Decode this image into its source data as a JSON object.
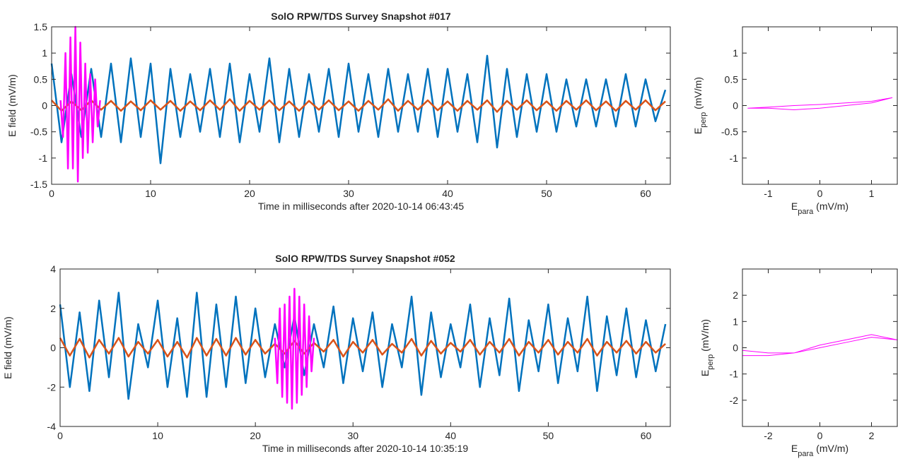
{
  "chart_data": [
    {
      "type": "line",
      "title": "SolO RPW/TDS Survey Snapshot #017",
      "xlabel": "Time in milliseconds after 2020-10-14 06:43:45",
      "ylabel": "E field (mV/m)",
      "xlim": [
        0,
        62.5
      ],
      "ylim": [
        -1.5,
        1.5
      ],
      "xticks": [
        0,
        10,
        20,
        30,
        40,
        50,
        60
      ],
      "yticks": [
        -1.5,
        -1,
        -0.5,
        0,
        0.5,
        1,
        1.5
      ],
      "x": [
        0,
        1,
        2,
        3,
        4,
        5,
        6,
        7,
        8,
        9,
        10,
        11,
        12,
        13,
        14,
        15,
        16,
        17,
        18,
        19,
        20,
        21,
        22,
        23,
        24,
        25,
        26,
        27,
        28,
        29,
        30,
        31,
        32,
        33,
        34,
        35,
        36,
        37,
        38,
        39,
        40,
        41,
        42,
        43,
        44,
        45,
        46,
        47,
        48,
        49,
        50,
        51,
        52,
        53,
        54,
        55,
        56,
        57,
        58,
        59,
        60,
        61,
        62
      ],
      "series": [
        {
          "color": "#0072bd",
          "values": [
            0.8,
            -0.7,
            0.6,
            -0.6,
            0.7,
            -0.6,
            0.8,
            -0.7,
            0.9,
            -0.6,
            0.8,
            -1.1,
            0.7,
            -0.6,
            0.6,
            -0.5,
            0.7,
            -0.6,
            0.8,
            -0.7,
            0.6,
            -0.5,
            0.9,
            -0.7,
            0.7,
            -0.6,
            0.6,
            -0.5,
            0.7,
            -0.6,
            0.8,
            -0.5,
            0.6,
            -0.6,
            0.7,
            -0.5,
            0.6,
            -0.5,
            0.7,
            -0.6,
            0.7,
            -0.5,
            0.6,
            -0.7,
            0.95,
            -0.8,
            0.7,
            -0.6,
            0.6,
            -0.5,
            0.6,
            -0.5,
            0.5,
            -0.4,
            0.5,
            -0.4,
            0.5,
            -0.4,
            0.6,
            -0.4,
            0.5,
            -0.3,
            0.3
          ]
        },
        {
          "color": "#d95319",
          "values": [
            0.1,
            -0.1,
            0.08,
            -0.09,
            0.1,
            -0.08,
            0.09,
            -0.1,
            0.08,
            -0.09,
            0.1,
            -0.08,
            0.09,
            -0.1,
            0.08,
            -0.09,
            0.1,
            -0.08,
            0.12,
            -0.1,
            0.09,
            -0.08,
            0.1,
            -0.09,
            0.08,
            -0.1,
            0.09,
            -0.08,
            0.1,
            -0.09,
            0.08,
            -0.1,
            0.09,
            -0.08,
            0.12,
            -0.1,
            0.09,
            -0.08,
            0.1,
            -0.09,
            0.08,
            -0.1,
            0.09,
            -0.08,
            0.1,
            -0.12,
            0.09,
            -0.08,
            0.1,
            -0.09,
            0.08,
            -0.1,
            0.09,
            -0.08,
            0.1,
            -0.09,
            0.08,
            -0.1,
            0.09,
            -0.08,
            0.1,
            -0.09,
            0.08
          ]
        },
        {
          "color": "#ff00ff",
          "x": [
            0.9,
            1.15,
            1.4,
            1.65,
            1.9,
            2.15,
            2.4,
            2.65,
            2.9,
            3.15,
            3.4,
            3.65,
            3.9,
            4.15,
            4.4,
            4.65,
            4.9
          ],
          "values": [
            0.1,
            -0.6,
            1.0,
            -1.2,
            1.3,
            -1.2,
            1.5,
            -1.45,
            1.2,
            -1.0,
            0.8,
            -0.9,
            0.6,
            -0.7,
            0.5,
            -0.4,
            0.1
          ]
        }
      ]
    },
    {
      "type": "line",
      "xlabel": {
        "base": "E",
        "sub": "para",
        "suffix": " (mV/m)"
      },
      "ylabel": {
        "base": "E",
        "sub": "perp",
        "suffix": " (mV/m)"
      },
      "xlim": [
        -1.5,
        1.5
      ],
      "ylim": [
        -1.5,
        1.5
      ],
      "xticks": [
        -1,
        0,
        1
      ],
      "yticks": [
        -1,
        -0.5,
        0,
        0.5,
        1
      ],
      "series": [
        {
          "color": "#ff00ff",
          "x": [
            -1.4,
            -1,
            -0.5,
            0,
            0.5,
            1,
            1.4,
            1,
            0.5,
            0,
            -0.5,
            -1,
            -1.4
          ],
          "values": [
            -0.05,
            -0.03,
            0,
            0.02,
            0.05,
            0.08,
            0.15,
            0.05,
            0,
            -0.05,
            -0.08,
            -0.05,
            -0.05
          ]
        }
      ]
    },
    {
      "type": "line",
      "title": "SolO RPW/TDS Survey Snapshot #052",
      "xlabel": "Time in milliseconds after 2020-10-14 10:35:19",
      "ylabel": "E field (mV/m)",
      "xlim": [
        0,
        62.5
      ],
      "ylim": [
        -4,
        4
      ],
      "xticks": [
        0,
        10,
        20,
        30,
        40,
        50,
        60
      ],
      "yticks": [
        -4,
        -2,
        0,
        2,
        4
      ],
      "x": [
        0,
        1,
        2,
        3,
        4,
        5,
        6,
        7,
        8,
        9,
        10,
        11,
        12,
        13,
        14,
        15,
        16,
        17,
        18,
        19,
        20,
        21,
        22,
        23,
        24,
        25,
        26,
        27,
        28,
        29,
        30,
        31,
        32,
        33,
        34,
        35,
        36,
        37,
        38,
        39,
        40,
        41,
        42,
        43,
        44,
        45,
        46,
        47,
        48,
        49,
        50,
        51,
        52,
        53,
        54,
        55,
        56,
        57,
        58,
        59,
        60,
        61,
        62
      ],
      "series": [
        {
          "color": "#0072bd",
          "values": [
            2.2,
            -2.0,
            1.8,
            -2.2,
            2.4,
            -1.5,
            2.8,
            -2.6,
            1.2,
            -1.0,
            2.4,
            -2.0,
            1.5,
            -2.5,
            2.8,
            -2.5,
            2.2,
            -2.0,
            2.6,
            -1.8,
            2.0,
            -1.5,
            1.2,
            -1.0,
            1.6,
            -1.4,
            1.2,
            -1.0,
            2.1,
            -1.8,
            1.5,
            -1.2,
            1.8,
            -2.0,
            1.2,
            -1.0,
            2.6,
            -2.4,
            1.8,
            -1.5,
            1.2,
            -1.0,
            2.2,
            -2.0,
            1.5,
            -1.4,
            2.5,
            -2.2,
            1.4,
            -1.2,
            2.2,
            -1.8,
            1.5,
            -1.2,
            2.6,
            -2.2,
            1.6,
            -1.4,
            2.0,
            -1.5,
            1.4,
            -1.2,
            1.2
          ]
        },
        {
          "color": "#d95319",
          "values": [
            0.5,
            -0.4,
            0.45,
            -0.5,
            0.4,
            -0.3,
            0.5,
            -0.45,
            0.3,
            -0.3,
            0.4,
            -0.45,
            0.3,
            -0.5,
            0.5,
            -0.4,
            0.45,
            -0.4,
            0.5,
            -0.35,
            0.4,
            -0.3,
            0.2,
            -0.3,
            0.35,
            -0.3,
            0.25,
            -0.2,
            0.4,
            -0.45,
            0.3,
            -0.25,
            0.4,
            -0.35,
            0.2,
            -0.25,
            0.45,
            -0.4,
            0.35,
            -0.3,
            0.25,
            -0.2,
            0.4,
            -0.35,
            0.3,
            -0.25,
            0.45,
            -0.4,
            0.3,
            -0.25,
            0.4,
            -0.35,
            0.3,
            -0.25,
            0.45,
            -0.4,
            0.3,
            -0.25,
            0.35,
            -0.3,
            0.3,
            -0.25,
            0.2
          ]
        },
        {
          "color": "#ff00ff",
          "x": [
            22,
            22.25,
            22.5,
            22.75,
            23,
            23.25,
            23.5,
            23.75,
            24,
            24.25,
            24.5,
            24.75,
            25,
            25.25,
            25.5,
            25.75,
            26
          ],
          "values": [
            0.5,
            -1.8,
            2.0,
            -2.5,
            2.2,
            -2.8,
            2.6,
            -3.1,
            3.0,
            -2.8,
            2.6,
            -2.4,
            2.2,
            -2.0,
            1.6,
            -1.2,
            0.5
          ]
        }
      ]
    },
    {
      "type": "line",
      "xlabel": {
        "base": "E",
        "sub": "para",
        "suffix": " (mV/m)"
      },
      "ylabel": {
        "base": "E",
        "sub": "perp",
        "suffix": " (mV/m)"
      },
      "xlim": [
        -3,
        3
      ],
      "ylim": [
        -3,
        3
      ],
      "xticks": [
        -2,
        0,
        2
      ],
      "yticks": [
        -2,
        -1,
        0,
        1,
        2
      ],
      "series": [
        {
          "color": "#ff00ff",
          "x": [
            -3,
            -2,
            -1,
            0,
            1,
            2,
            3,
            2,
            1,
            0,
            -1,
            -2,
            -3
          ],
          "values": [
            -0.1,
            -0.2,
            -0.2,
            0,
            0.2,
            0.4,
            0.3,
            0.5,
            0.3,
            0.1,
            -0.2,
            -0.3,
            -0.3
          ]
        }
      ]
    }
  ]
}
